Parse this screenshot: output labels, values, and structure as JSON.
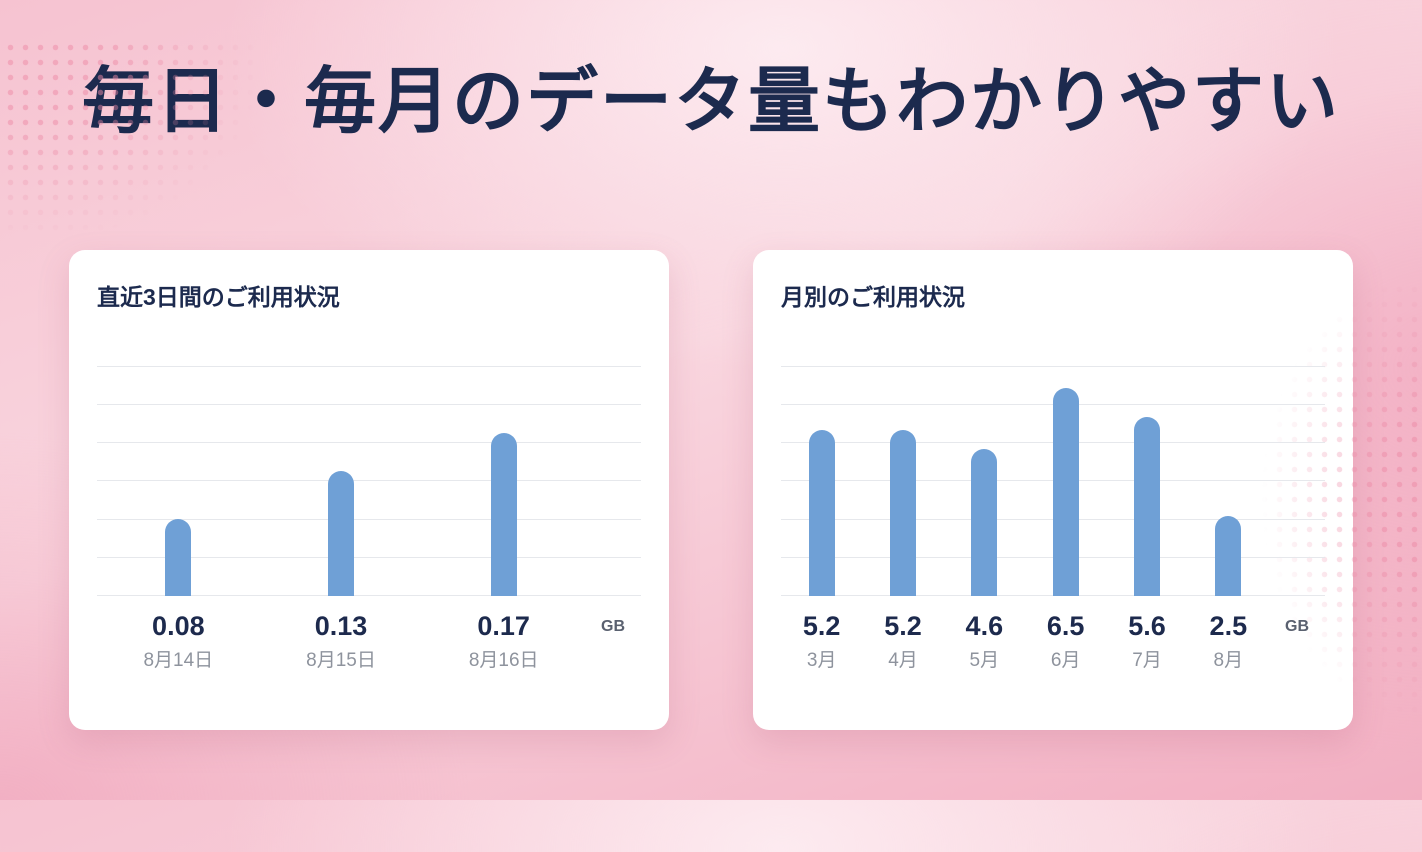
{
  "page": {
    "title": "毎日・毎月のデータ量もわかりやすい"
  },
  "colors": {
    "bar": "#6FA0D6",
    "heading": "#1C2A4E",
    "value_text": "#1D2A4D",
    "category_text": "#8E939D",
    "unit_text": "#5A6170",
    "card_bg": "#FFFFFF",
    "gridline": "#E6E8EC",
    "bg_pink_light": "#F9D6DF",
    "bg_pink_deep": "#F2AFC2"
  },
  "chart_data": [
    {
      "type": "bar",
      "title": "直近3日間のご利用状況",
      "categories": [
        "8月14日",
        "8月15日",
        "8月16日"
      ],
      "values": [
        0.08,
        0.13,
        0.17
      ],
      "value_labels": [
        "0.08",
        "0.13",
        "0.17"
      ],
      "unit": "GB",
      "xlabel": "",
      "ylabel": "",
      "ylim": [
        0,
        0.24
      ],
      "grid": true,
      "gridlines": 7,
      "legend": false
    },
    {
      "type": "bar",
      "title": "月別のご利用状況",
      "categories": [
        "3月",
        "4月",
        "5月",
        "6月",
        "7月",
        "8月"
      ],
      "values": [
        5.2,
        5.2,
        4.6,
        6.5,
        5.6,
        2.5
      ],
      "value_labels": [
        "5.2",
        "5.2",
        "4.6",
        "6.5",
        "5.6",
        "2.5"
      ],
      "unit": "GB",
      "xlabel": "",
      "ylabel": "",
      "ylim": [
        0,
        7.2
      ],
      "grid": true,
      "gridlines": 7,
      "legend": false
    }
  ]
}
